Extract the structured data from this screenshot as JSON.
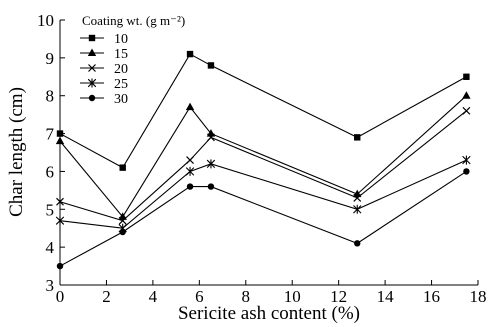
{
  "chart_data": {
    "type": "line",
    "xlabel": "Sericite ash content (%)",
    "ylabel": "Char length (cm)",
    "xlim": [
      0,
      18
    ],
    "ylim": [
      3,
      10
    ],
    "xticks": [
      0,
      2,
      4,
      6,
      8,
      10,
      12,
      14,
      16,
      18
    ],
    "yticks": [
      3,
      4,
      5,
      6,
      7,
      8,
      9,
      10
    ],
    "grid": false,
    "legend": {
      "title": "Coating wt. (g m⁻²)",
      "placement": "top-left"
    },
    "x": [
      0,
      2.7,
      5.6,
      6.5,
      12.8,
      17.5
    ],
    "series": [
      {
        "name": "10",
        "marker": "square",
        "values": [
          7.0,
          6.1,
          9.1,
          8.8,
          6.9,
          8.5
        ]
      },
      {
        "name": "15",
        "marker": "triangle",
        "values": [
          6.8,
          4.8,
          7.7,
          7.0,
          5.4,
          8.0
        ]
      },
      {
        "name": "20",
        "marker": "x",
        "values": [
          5.2,
          4.7,
          6.3,
          6.9,
          5.3,
          7.6
        ]
      },
      {
        "name": "25",
        "marker": "star",
        "values": [
          4.7,
          4.5,
          6.0,
          6.2,
          5.0,
          6.3
        ]
      },
      {
        "name": "30",
        "marker": "circle",
        "values": [
          3.5,
          4.4,
          5.6,
          5.6,
          4.1,
          6.0
        ]
      }
    ]
  }
}
